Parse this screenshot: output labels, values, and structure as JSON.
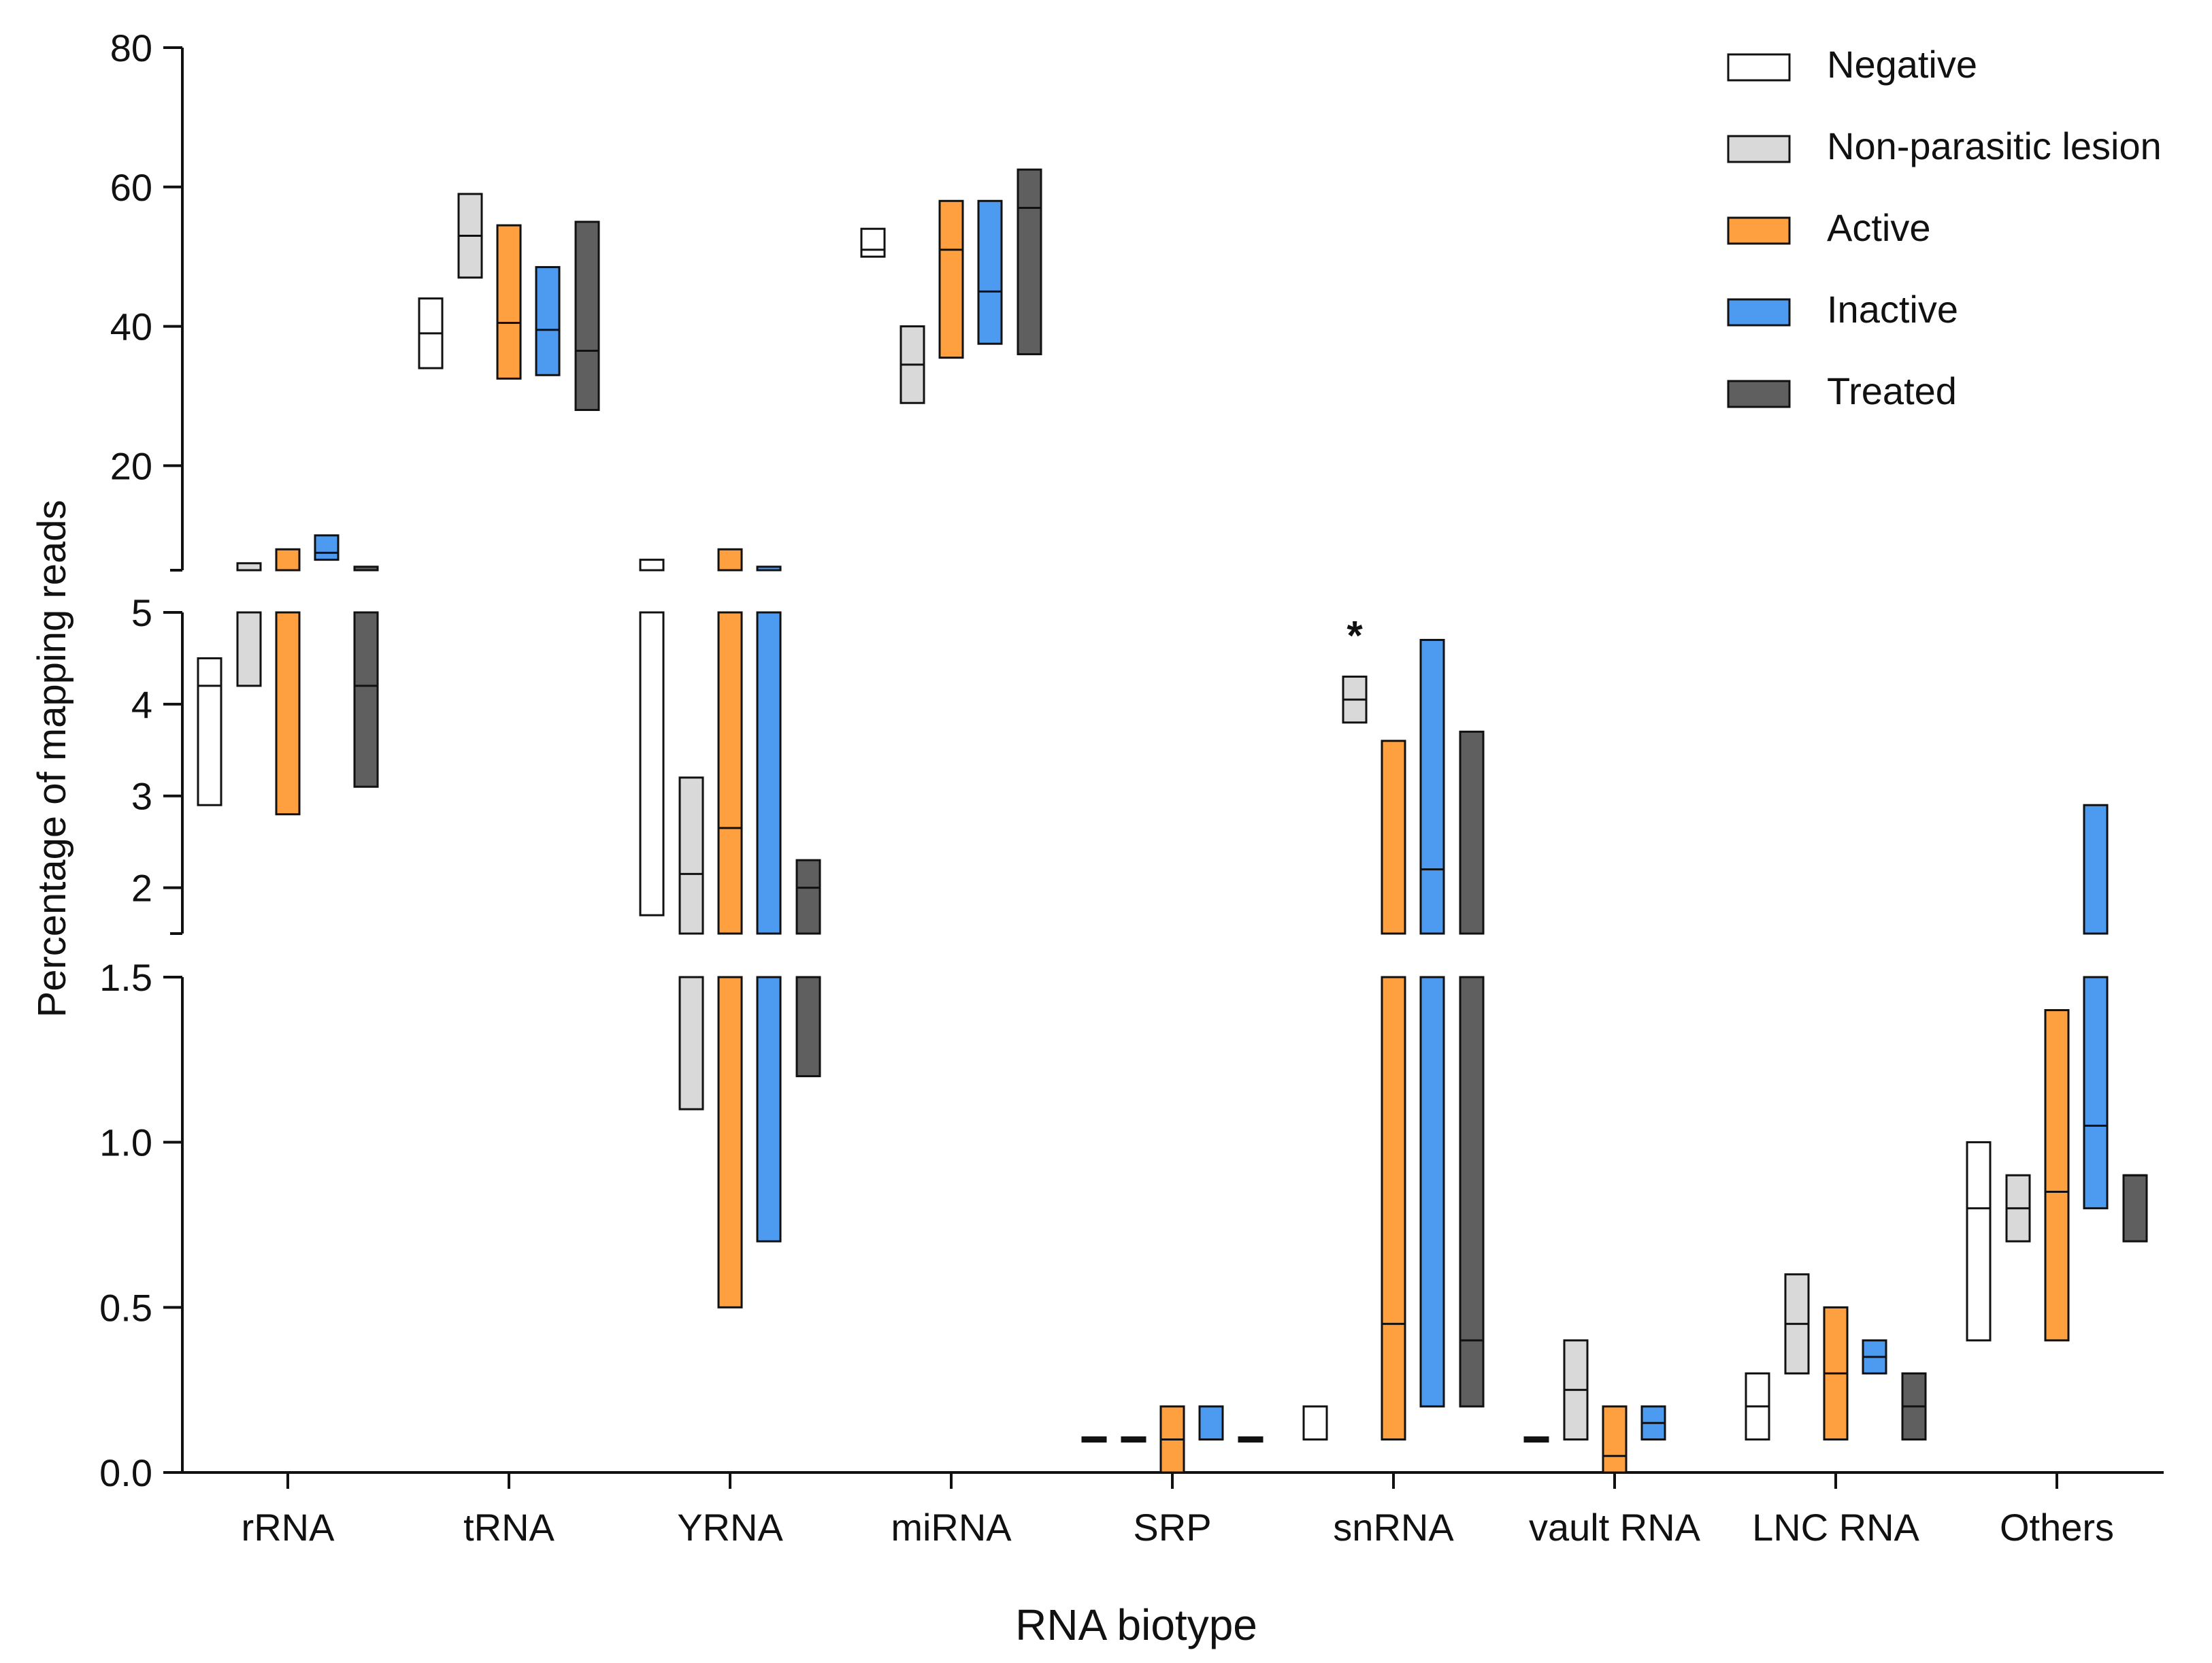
{
  "chart_data": {
    "type": "floating-bar",
    "description_free": true,
    "ylabel": "Percentage of mapping reads",
    "xlabel": "RNA biotype",
    "categories": [
      "rRNA",
      "tRNA",
      "YRNA",
      "miRNA",
      "SRP",
      "snRNA",
      "vault RNA",
      "LNC RNA",
      "Others"
    ],
    "legend": [
      {
        "name": "Negative",
        "color": "#ffffff"
      },
      {
        "name": "Non-parasitic lesion",
        "color": "#d9d9d9"
      },
      {
        "name": "Active",
        "color": "#ffa040"
      },
      {
        "name": "Inactive",
        "color": "#4d9bf0"
      },
      {
        "name": "Treated",
        "color": "#5f5f5f"
      }
    ],
    "y_segments": [
      {
        "range": [
          0,
          1.5
        ],
        "ticks": [
          "0.0",
          "0.5",
          "1.0",
          "1.5"
        ]
      },
      {
        "range": [
          1.5,
          5
        ],
        "ticks": [
          "2",
          "3",
          "4",
          "5"
        ]
      },
      {
        "range": [
          5,
          80
        ],
        "ticks": [
          "20",
          "40",
          "60",
          "80"
        ]
      }
    ],
    "series": [
      {
        "name": "Negative",
        "ranges": [
          [
            2.9,
            4.5,
            4.2
          ],
          [
            34,
            44,
            39
          ],
          [
            1.7,
            6.5,
            null
          ],
          [
            50,
            54,
            51
          ],
          [
            0.1,
            0.1,
            0.1
          ],
          [
            0.1,
            0.2,
            0.1
          ],
          [
            0.1,
            0.1,
            0.1
          ],
          [
            0.1,
            0.3,
            0.2
          ],
          [
            0.4,
            1.0,
            0.8
          ]
        ]
      },
      {
        "name": "Non-parasitic lesion",
        "ranges": [
          [
            4.2,
            6,
            null
          ],
          [
            47,
            59,
            53
          ],
          [
            1.1,
            3.2,
            2.15
          ],
          [
            29,
            40,
            34.5
          ],
          [
            0.1,
            0.1,
            0.1
          ],
          [
            3.8,
            4.3,
            4.05
          ],
          [
            0.1,
            0.4,
            0.25
          ],
          [
            0.3,
            0.6,
            0.45
          ],
          [
            0.7,
            0.9,
            0.8
          ]
        ]
      },
      {
        "name": "Active",
        "ranges": [
          [
            2.8,
            8,
            null
          ],
          [
            32.5,
            54.5,
            40.5
          ],
          [
            0.5,
            8,
            2.65
          ],
          [
            35.5,
            58,
            51
          ],
          [
            0,
            0.2,
            0.1
          ],
          [
            0.1,
            3.6,
            0.45
          ],
          [
            0,
            0.2,
            0.05
          ],
          [
            0.1,
            0.5,
            0.3
          ],
          [
            0.4,
            1.4,
            0.85
          ]
        ]
      },
      {
        "name": "Inactive",
        "ranges": [
          [
            6.5,
            10,
            7.5
          ],
          [
            33,
            48.5,
            39.5
          ],
          [
            0.7,
            5.5,
            null
          ],
          [
            37.5,
            58,
            45
          ],
          [
            0.1,
            0.2,
            0.1
          ],
          [
            0.2,
            4.7,
            2.2
          ],
          [
            0.1,
            0.2,
            0.15
          ],
          [
            0.3,
            0.4,
            0.35
          ],
          [
            0.8,
            2.9,
            1.05
          ]
        ]
      },
      {
        "name": "Treated",
        "ranges": [
          [
            3.1,
            5.5,
            4.2
          ],
          [
            28,
            55,
            36.5
          ],
          [
            1.2,
            2.3,
            2.0
          ],
          [
            36,
            62.5,
            57
          ],
          [
            0.1,
            0.1,
            0.1
          ],
          [
            0.2,
            3.7,
            0.4
          ],
          [
            null,
            null,
            null
          ],
          [
            0.1,
            0.3,
            0.2
          ],
          [
            0.7,
            0.9,
            0.9
          ]
        ]
      }
    ],
    "annotations": [
      {
        "category": "snRNA",
        "series": "Non-parasitic lesion",
        "text": "*"
      }
    ]
  }
}
